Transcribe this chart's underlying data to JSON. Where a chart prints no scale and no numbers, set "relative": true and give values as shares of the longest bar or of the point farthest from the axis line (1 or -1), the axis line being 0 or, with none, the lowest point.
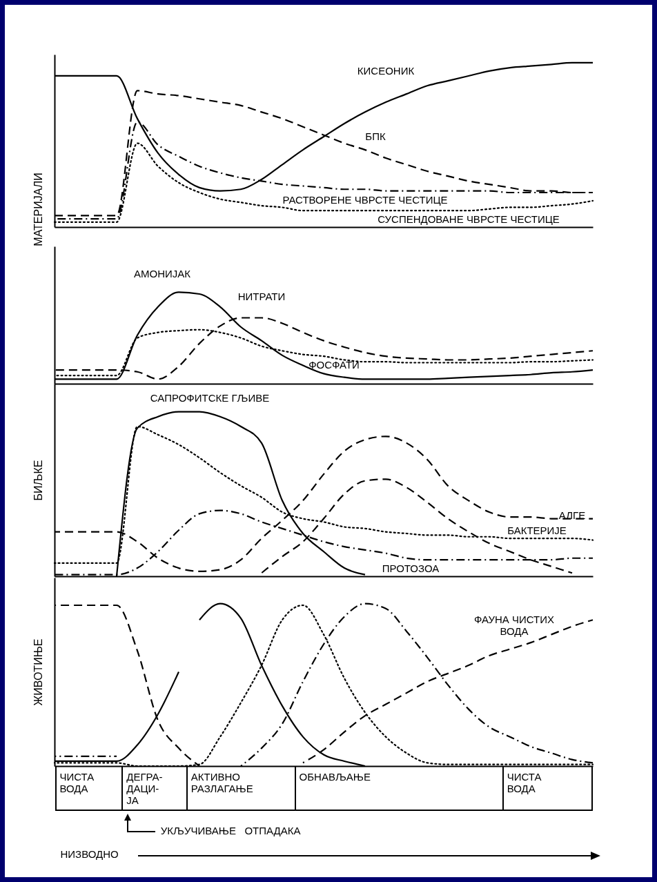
{
  "chart_data": [
    {
      "type": "line",
      "relative": true,
      "ylabel": "МАТЕРИЈАЛИ",
      "categories": [
        null,
        null,
        null,
        null,
        null,
        null,
        null,
        null,
        null,
        null,
        null,
        null,
        null,
        null,
        null,
        null,
        null,
        null,
        null,
        null,
        null,
        null,
        null,
        null,
        null,
        null,
        null
      ],
      "series": [
        {
          "name": "КИСЕОНИК",
          "color": "#000000",
          "line_style": "solid",
          "values": [
            0.92,
            0.92,
            0.92,
            0.92,
            0.66,
            0.45,
            0.32,
            0.24,
            0.22,
            0.23,
            0.29,
            0.38,
            0.47,
            0.55,
            0.63,
            0.7,
            0.76,
            0.81,
            0.86,
            0.89,
            0.92,
            0.95,
            0.97,
            0.98,
            0.99,
            1.0,
            1.0
          ]
        },
        {
          "name": "БПК",
          "color": "#000000",
          "line_style": "dashed",
          "values": [
            0.07,
            0.07,
            0.07,
            0.07,
            0.83,
            0.81,
            0.8,
            0.78,
            0.76,
            0.74,
            0.7,
            0.66,
            0.61,
            0.56,
            0.51,
            0.47,
            0.42,
            0.38,
            0.34,
            0.31,
            0.28,
            0.26,
            0.24,
            0.22,
            0.22,
            0.21,
            0.21
          ]
        },
        {
          "name": "РАСТВОРЕНЕ ЧВРСТЕ ЧЕСТИЦЕ",
          "color": "#000000",
          "line_style": "dashdot",
          "values": [
            0.05,
            0.05,
            0.05,
            0.05,
            0.64,
            0.5,
            0.43,
            0.37,
            0.33,
            0.3,
            0.28,
            0.26,
            0.25,
            0.24,
            0.23,
            0.23,
            0.22,
            0.22,
            0.22,
            0.22,
            0.22,
            0.22,
            0.21,
            0.21,
            0.21,
            0.21,
            0.21
          ]
        },
        {
          "name": "СУСПЕНДОВАНЕ ЧВРСТЕ ЧЕСТИЦЕ",
          "color": "#000000",
          "line_style": "dotted",
          "values": [
            0.03,
            0.03,
            0.03,
            0.03,
            0.51,
            0.37,
            0.27,
            0.21,
            0.17,
            0.15,
            0.13,
            0.12,
            0.1,
            0.1,
            0.1,
            0.1,
            0.1,
            0.1,
            0.1,
            0.1,
            0.1,
            0.11,
            0.12,
            0.12,
            0.13,
            0.14,
            0.16
          ]
        }
      ]
    },
    {
      "type": "line",
      "relative": true,
      "categories": [
        null,
        null,
        null,
        null,
        null,
        null,
        null,
        null,
        null,
        null,
        null,
        null,
        null,
        null,
        null,
        null,
        null,
        null,
        null,
        null,
        null,
        null,
        null,
        null,
        null,
        null,
        null
      ],
      "series": [
        {
          "name": "АМОНИЈАК",
          "color": "#000000",
          "line_style": "solid",
          "values": [
            0.05,
            0.05,
            0.05,
            0.05,
            0.53,
            0.84,
            1.0,
            0.98,
            0.84,
            0.62,
            0.47,
            0.31,
            0.2,
            0.11,
            0.07,
            0.05,
            0.05,
            0.05,
            0.05,
            0.06,
            0.07,
            0.08,
            0.09,
            0.1,
            0.12,
            0.13,
            0.15
          ]
        },
        {
          "name": "НИТРАТИ",
          "color": "#000000",
          "line_style": "dashed",
          "values": [
            0.15,
            0.15,
            0.15,
            0.15,
            0.13,
            0.05,
            0.19,
            0.44,
            0.63,
            0.72,
            0.72,
            0.66,
            0.56,
            0.47,
            0.4,
            0.34,
            0.3,
            0.28,
            0.27,
            0.26,
            0.26,
            0.27,
            0.28,
            0.3,
            0.32,
            0.34,
            0.36
          ]
        },
        {
          "name": "ФОСФАТИ",
          "color": "#000000",
          "line_style": "dotted",
          "values": [
            0.09,
            0.09,
            0.09,
            0.09,
            0.5,
            0.56,
            0.58,
            0.59,
            0.56,
            0.5,
            0.41,
            0.36,
            0.32,
            0.3,
            0.26,
            0.24,
            0.24,
            0.23,
            0.23,
            0.23,
            0.23,
            0.23,
            0.23,
            0.24,
            0.24,
            0.25,
            0.26
          ]
        }
      ]
    },
    {
      "type": "line",
      "relative": true,
      "ylabel": "БИЉКЕ",
      "categories": [
        null,
        null,
        null,
        null,
        null,
        null,
        null,
        null,
        null,
        null,
        null,
        null,
        null,
        null,
        null,
        null,
        null,
        null,
        null,
        null,
        null,
        null,
        null,
        null,
        null,
        null,
        null
      ],
      "series": [
        {
          "name": "САПРОФИТСКЕ ГЉИВЕ",
          "color": "#000000",
          "line_style": "solid",
          "values": [
            null,
            null,
            null,
            0,
            0.9,
            0.97,
            1.0,
            1.0,
            0.97,
            0.91,
            0.81,
            0.46,
            0.26,
            0.15,
            0.05,
            0.01,
            null,
            null,
            null,
            null,
            null,
            null,
            null,
            null,
            null,
            null,
            null
          ]
        },
        {
          "name": "БАКТЕРИЈЕ",
          "color": "#000000",
          "line_style": "dotted",
          "values": [
            0.08,
            0.08,
            0.08,
            0.08,
            0.91,
            0.86,
            0.8,
            0.72,
            0.63,
            0.55,
            0.48,
            0.39,
            0.35,
            0.33,
            0.3,
            0.29,
            0.27,
            0.26,
            0.25,
            0.25,
            0.24,
            0.24,
            0.23,
            0.23,
            0.23,
            0.23,
            0.22
          ]
        },
        {
          "name": "АЛГЕ",
          "color": "#000000",
          "line_style": "dashed",
          "values": [
            0.27,
            0.27,
            0.27,
            0.27,
            0.21,
            0.11,
            0.05,
            0.03,
            0.04,
            0.1,
            0.23,
            0.34,
            0.46,
            0.62,
            0.76,
            0.83,
            0.85,
            0.81,
            0.71,
            0.55,
            0.46,
            0.39,
            0.36,
            0.36,
            0.35,
            0.35,
            0.35
          ]
        },
        {
          "color": "#000000",
          "line_style": "dashed",
          "values": [
            null,
            null,
            null,
            null,
            null,
            null,
            null,
            null,
            null,
            null,
            0.02,
            0.12,
            0.21,
            0.35,
            0.5,
            0.58,
            0.59,
            0.54,
            0.45,
            0.35,
            0.27,
            0.2,
            0.15,
            0.1,
            0.06,
            0.02,
            null
          ]
        },
        {
          "name": "ПРОТОЗОА",
          "color": "#000000",
          "line_style": "dashdot",
          "values": [
            0.01,
            0.01,
            0.01,
            0.01,
            0.05,
            0.15,
            0.28,
            0.38,
            0.4,
            0.38,
            0.33,
            0.29,
            0.25,
            0.21,
            0.18,
            0.16,
            0.14,
            0.11,
            0.1,
            0.1,
            0.1,
            0.1,
            0.1,
            0.1,
            0.1,
            0.11,
            0.11
          ]
        }
      ]
    },
    {
      "type": "line",
      "relative": true,
      "ylabel": "ЖИВОТИЊЕ",
      "categories": [
        null,
        null,
        null,
        null,
        null,
        null,
        null,
        null,
        null,
        null,
        null,
        null,
        null,
        null,
        null,
        null,
        null,
        null,
        null,
        null,
        null,
        null,
        null,
        null,
        null,
        null,
        null
      ],
      "series": [
        {
          "name": "ФАУНА ЧИСТИХ\nВОДА",
          "color": "#000000",
          "line_style": "dashed",
          "values": [
            0.99,
            0.99,
            0.99,
            0.99,
            0.71,
            0.28,
            0.11,
            0,
            null,
            null,
            null,
            null,
            0.02,
            0.1,
            0.21,
            0.31,
            0.38,
            0.45,
            0.52,
            0.57,
            0.62,
            0.68,
            0.72,
            0.76,
            0.81,
            0.86,
            0.9
          ]
        },
        {
          "color": "#000000",
          "line_style": "solid",
          "values": [
            0.03,
            0.03,
            0.03,
            0.03,
            0.13,
            0.32,
            0.58,
            null,
            null,
            null,
            null,
            null,
            null,
            null,
            null,
            null,
            null,
            null,
            null,
            null,
            null,
            null,
            null,
            null,
            null,
            null,
            null
          ]
        },
        {
          "color": "#000000",
          "line_style": "solid",
          "values": [
            null,
            null,
            null,
            null,
            null,
            null,
            null,
            0.9,
            1.0,
            0.91,
            0.62,
            0.37,
            0.18,
            0.07,
            0.03,
            0,
            null,
            null,
            null,
            null,
            null,
            null,
            null,
            null,
            null,
            null,
            null
          ]
        },
        {
          "color": "#000000",
          "line_style": "dotted",
          "values": [
            0.02,
            0.02,
            0.02,
            0.02,
            0,
            0,
            0,
            0.01,
            0.18,
            0.39,
            0.62,
            0.9,
            0.99,
            0.81,
            0.54,
            0.33,
            0.18,
            0.08,
            0.02,
            0.01,
            0.01,
            0.01,
            0.01,
            0.01,
            0.01,
            0.01,
            0.01
          ]
        },
        {
          "color": "#000000",
          "line_style": "dashdot",
          "values": [
            0.06,
            0.06,
            0.06,
            0.06,
            null,
            null,
            null,
            null,
            null,
            0,
            0.11,
            0.26,
            0.52,
            0.75,
            0.92,
            1.0,
            0.97,
            0.83,
            0.67,
            0.5,
            0.35,
            0.24,
            0.18,
            0.12,
            0.08,
            0.04,
            0.02
          ]
        }
      ],
      "annotations": [
        "ЧИСТА\nВОДА",
        "ДЕГРА-\nДАЦИ-\nЈА",
        "АКТИВНО\nРАЗЛАГАЊЕ",
        "ОБНАВЉАЊЕ",
        "ЧИСТА\nВОДА",
        "УКЉУЧИВАЊЕ   ОТПАДАКА",
        "НИЗВОДНО"
      ]
    }
  ]
}
